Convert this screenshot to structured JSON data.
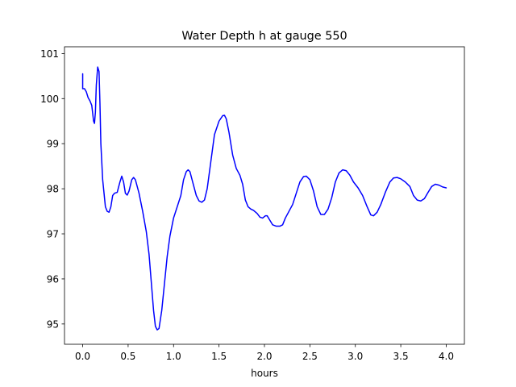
{
  "chart_data": {
    "type": "line",
    "title": "Water Depth h at gauge 550",
    "xlabel": "hours",
    "ylabel": "",
    "xlim": [
      -0.2,
      4.2
    ],
    "ylim": [
      94.55,
      101.15
    ],
    "grid": false,
    "line_color": "#0000ff",
    "x_ticks": [
      0.0,
      0.5,
      1.0,
      1.5,
      2.0,
      2.5,
      3.0,
      3.5,
      4.0
    ],
    "x_tick_labels": [
      "0.0",
      "0.5",
      "1.0",
      "1.5",
      "2.0",
      "2.5",
      "3.0",
      "3.5",
      "4.0"
    ],
    "y_ticks": [
      95,
      96,
      97,
      98,
      99,
      100,
      101
    ],
    "y_tick_labels": [
      "95",
      "96",
      "97",
      "98",
      "99",
      "100",
      "101"
    ],
    "series": [
      {
        "points": [
          [
            0.0,
            100.55
          ],
          [
            0.0,
            100.22
          ],
          [
            0.02,
            100.22
          ],
          [
            0.04,
            100.15
          ],
          [
            0.06,
            100.02
          ],
          [
            0.08,
            99.95
          ],
          [
            0.1,
            99.85
          ],
          [
            0.12,
            99.5
          ],
          [
            0.13,
            99.45
          ],
          [
            0.14,
            99.7
          ],
          [
            0.15,
            100.3
          ],
          [
            0.165,
            100.7
          ],
          [
            0.18,
            100.6
          ],
          [
            0.19,
            99.9
          ],
          [
            0.2,
            99.0
          ],
          [
            0.22,
            98.2
          ],
          [
            0.25,
            97.6
          ],
          [
            0.27,
            97.5
          ],
          [
            0.29,
            97.48
          ],
          [
            0.31,
            97.6
          ],
          [
            0.33,
            97.85
          ],
          [
            0.35,
            97.9
          ],
          [
            0.38,
            97.92
          ],
          [
            0.41,
            98.15
          ],
          [
            0.43,
            98.28
          ],
          [
            0.45,
            98.15
          ],
          [
            0.47,
            97.9
          ],
          [
            0.49,
            97.86
          ],
          [
            0.51,
            97.95
          ],
          [
            0.54,
            98.2
          ],
          [
            0.56,
            98.25
          ],
          [
            0.58,
            98.2
          ],
          [
            0.62,
            97.9
          ],
          [
            0.66,
            97.5
          ],
          [
            0.7,
            97.05
          ],
          [
            0.73,
            96.55
          ],
          [
            0.76,
            95.8
          ],
          [
            0.78,
            95.3
          ],
          [
            0.8,
            94.95
          ],
          [
            0.82,
            94.87
          ],
          [
            0.84,
            94.9
          ],
          [
            0.87,
            95.3
          ],
          [
            0.9,
            95.9
          ],
          [
            0.93,
            96.5
          ],
          [
            0.96,
            96.95
          ],
          [
            1.0,
            97.35
          ],
          [
            1.04,
            97.6
          ],
          [
            1.08,
            97.85
          ],
          [
            1.11,
            98.2
          ],
          [
            1.14,
            98.38
          ],
          [
            1.16,
            98.42
          ],
          [
            1.18,
            98.38
          ],
          [
            1.21,
            98.15
          ],
          [
            1.25,
            97.85
          ],
          [
            1.28,
            97.73
          ],
          [
            1.31,
            97.7
          ],
          [
            1.34,
            97.75
          ],
          [
            1.37,
            98.0
          ],
          [
            1.41,
            98.6
          ],
          [
            1.45,
            99.2
          ],
          [
            1.5,
            99.5
          ],
          [
            1.54,
            99.62
          ],
          [
            1.56,
            99.63
          ],
          [
            1.58,
            99.55
          ],
          [
            1.61,
            99.25
          ],
          [
            1.65,
            98.75
          ],
          [
            1.69,
            98.45
          ],
          [
            1.73,
            98.3
          ],
          [
            1.76,
            98.1
          ],
          [
            1.79,
            97.75
          ],
          [
            1.82,
            97.6
          ],
          [
            1.85,
            97.55
          ],
          [
            1.88,
            97.52
          ],
          [
            1.92,
            97.45
          ],
          [
            1.95,
            97.37
          ],
          [
            1.98,
            97.35
          ],
          [
            2.01,
            97.4
          ],
          [
            2.03,
            97.4
          ],
          [
            2.06,
            97.3
          ],
          [
            2.09,
            97.2
          ],
          [
            2.13,
            97.17
          ],
          [
            2.17,
            97.17
          ],
          [
            2.2,
            97.2
          ],
          [
            2.23,
            97.35
          ],
          [
            2.27,
            97.5
          ],
          [
            2.31,
            97.65
          ],
          [
            2.35,
            97.9
          ],
          [
            2.39,
            98.15
          ],
          [
            2.43,
            98.27
          ],
          [
            2.46,
            98.28
          ],
          [
            2.5,
            98.2
          ],
          [
            2.54,
            97.95
          ],
          [
            2.58,
            97.6
          ],
          [
            2.62,
            97.43
          ],
          [
            2.66,
            97.43
          ],
          [
            2.7,
            97.55
          ],
          [
            2.74,
            97.8
          ],
          [
            2.78,
            98.15
          ],
          [
            2.82,
            98.35
          ],
          [
            2.86,
            98.42
          ],
          [
            2.9,
            98.4
          ],
          [
            2.94,
            98.3
          ],
          [
            2.98,
            98.15
          ],
          [
            3.03,
            98.02
          ],
          [
            3.08,
            97.85
          ],
          [
            3.13,
            97.6
          ],
          [
            3.17,
            97.42
          ],
          [
            3.2,
            97.4
          ],
          [
            3.24,
            97.48
          ],
          [
            3.28,
            97.65
          ],
          [
            3.33,
            97.92
          ],
          [
            3.38,
            98.15
          ],
          [
            3.42,
            98.24
          ],
          [
            3.46,
            98.25
          ],
          [
            3.5,
            98.22
          ],
          [
            3.55,
            98.15
          ],
          [
            3.6,
            98.05
          ],
          [
            3.64,
            97.85
          ],
          [
            3.68,
            97.75
          ],
          [
            3.72,
            97.73
          ],
          [
            3.76,
            97.78
          ],
          [
            3.8,
            97.92
          ],
          [
            3.84,
            98.05
          ],
          [
            3.88,
            98.1
          ],
          [
            3.92,
            98.08
          ],
          [
            3.96,
            98.04
          ],
          [
            4.0,
            98.02
          ]
        ]
      }
    ]
  }
}
